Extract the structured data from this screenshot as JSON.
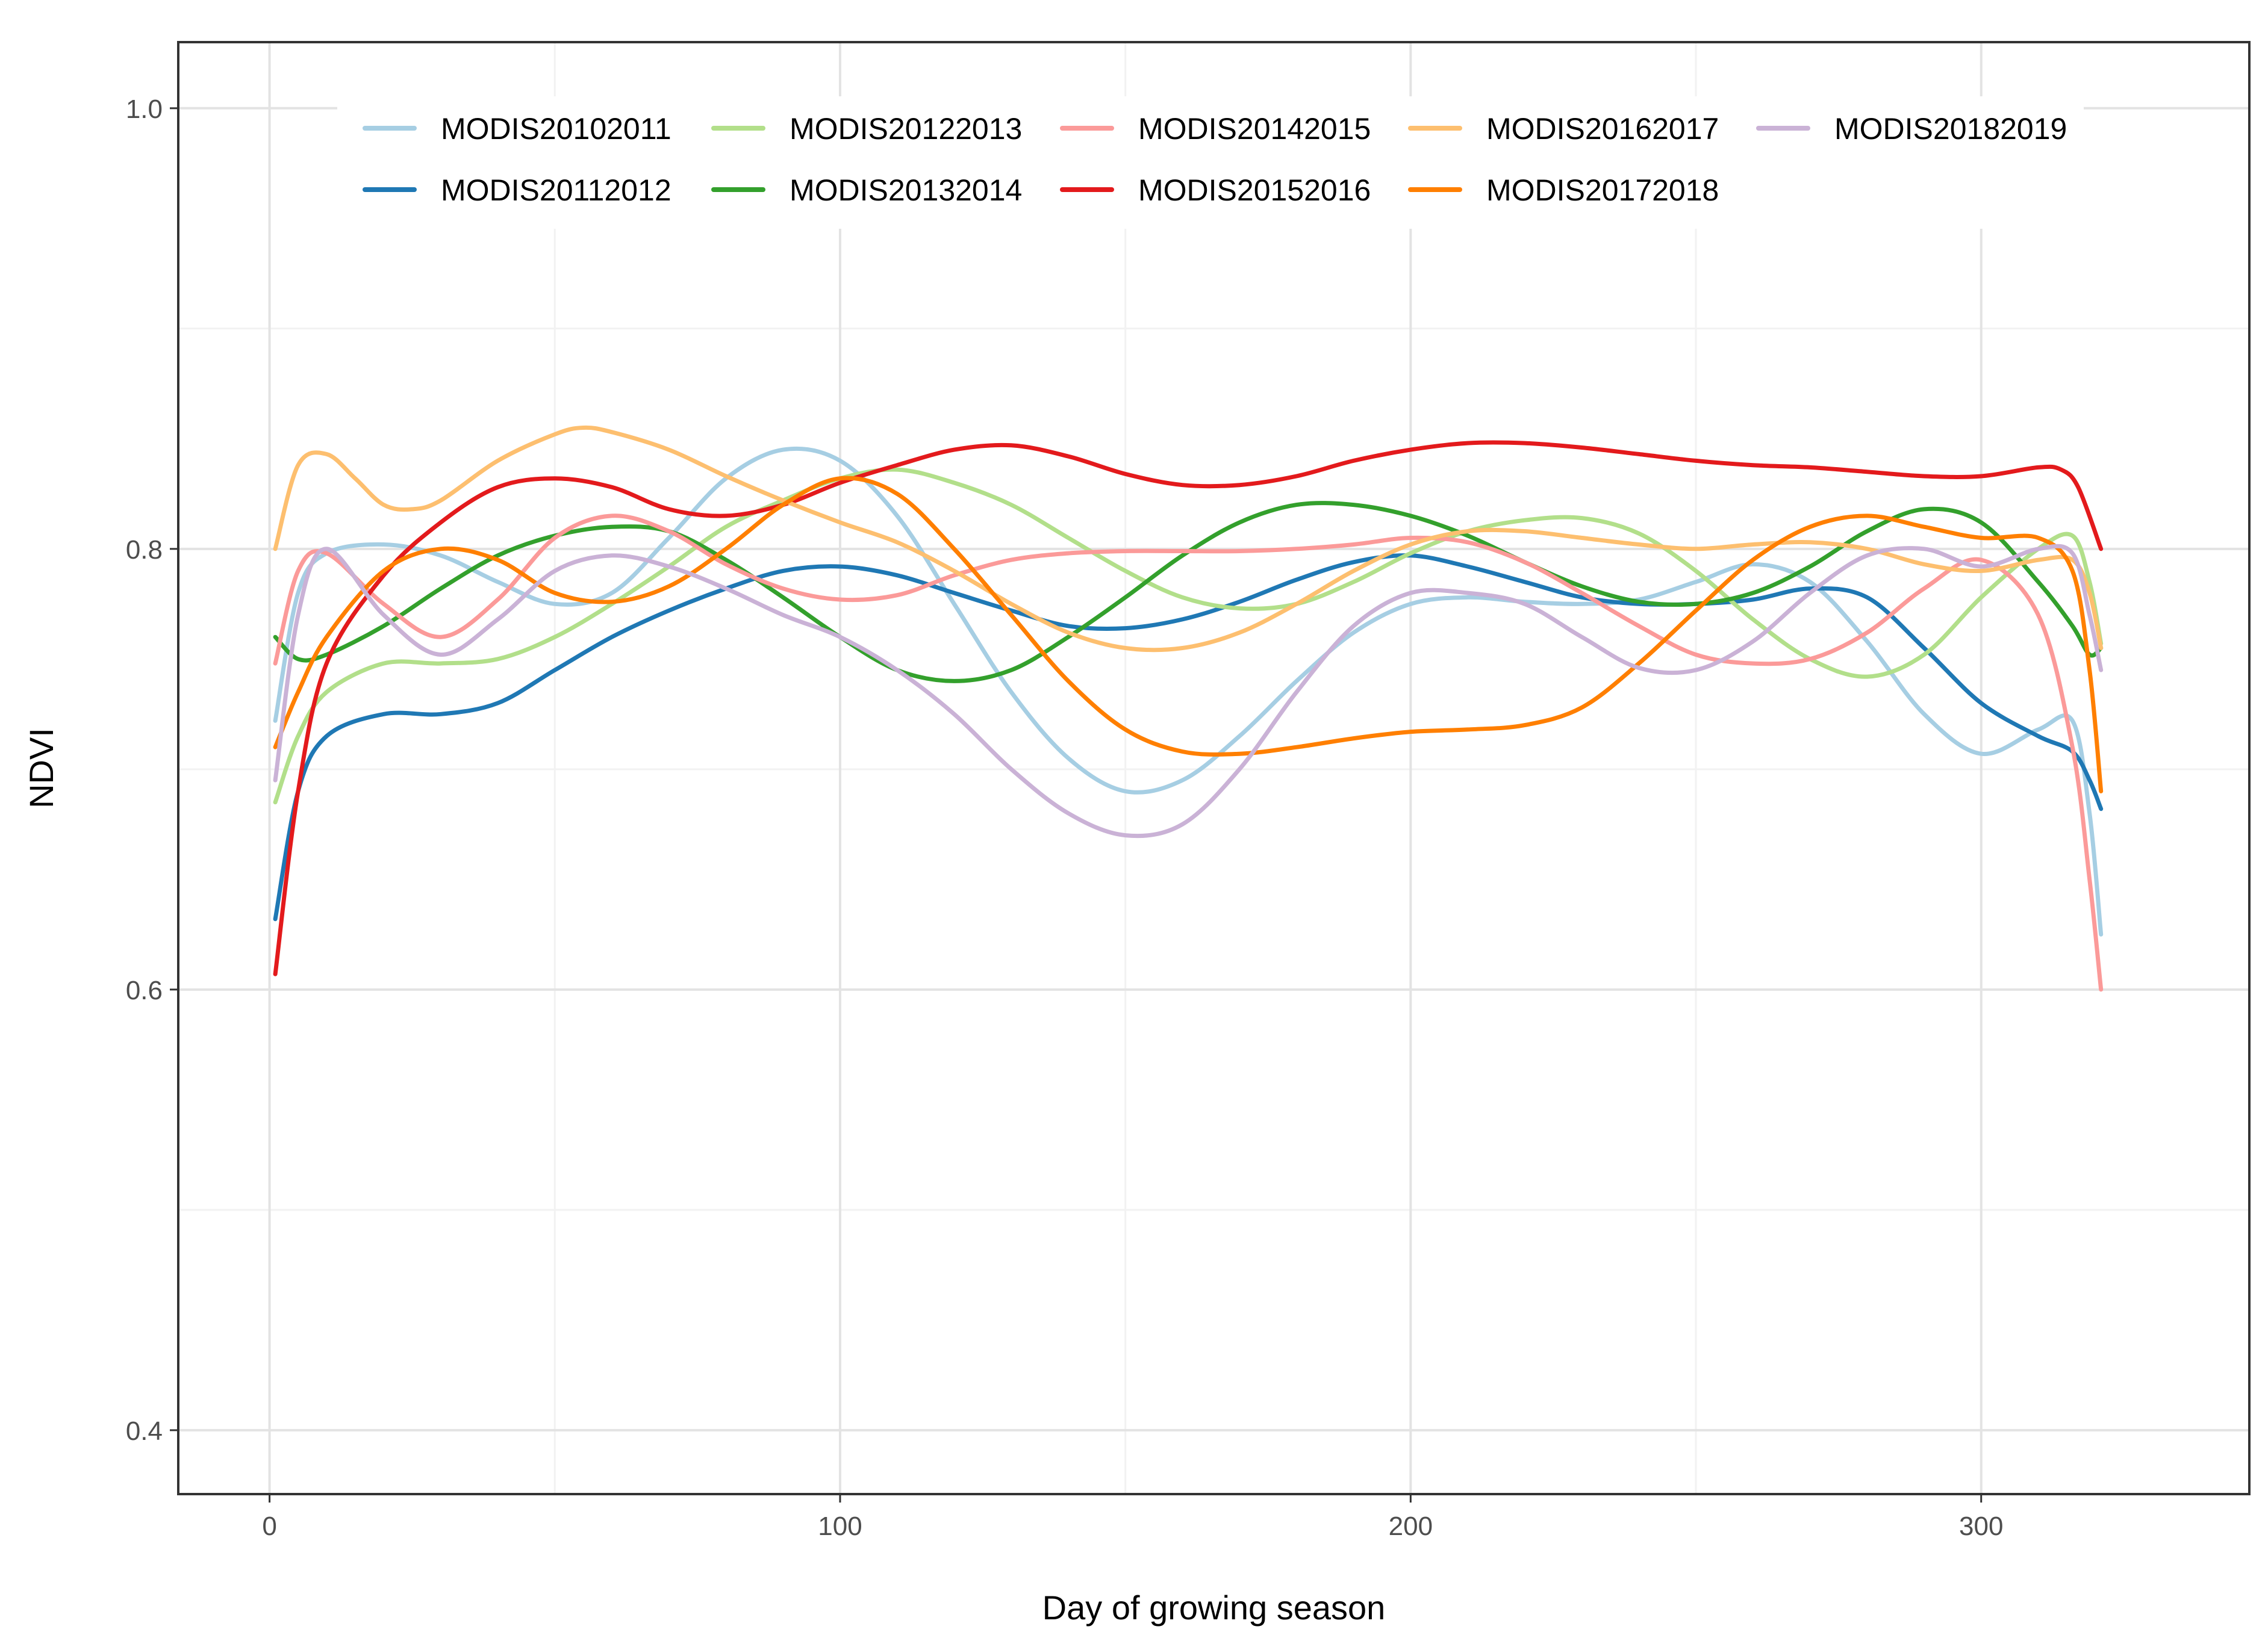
{
  "chart_data": {
    "type": "line",
    "title": "",
    "xlabel": "Day of growing season",
    "ylabel": "NDVI",
    "xlim": [
      -16,
      347
    ],
    "ylim": [
      0.371,
      1.03
    ],
    "x_ticks": [
      0,
      100,
      200,
      300
    ],
    "x_tick_labels": [
      "0",
      "100",
      "200",
      "300"
    ],
    "y_ticks": [
      0.4,
      0.6,
      0.8,
      1.0
    ],
    "y_tick_labels": [
      "0.4",
      "0.6",
      "0.8",
      "1.0"
    ],
    "grid": true,
    "legend_position": "top",
    "series": [
      {
        "name": "MODIS20102011",
        "color": "#a6cee3",
        "x": [
          1,
          5,
          10,
          20,
          30,
          40,
          50,
          60,
          70,
          80,
          90,
          100,
          110,
          120,
          130,
          140,
          150,
          160,
          170,
          180,
          190,
          200,
          210,
          220,
          230,
          240,
          250,
          260,
          270,
          280,
          290,
          300,
          310,
          316,
          319,
          321
        ],
        "y": [
          0.722,
          0.78,
          0.798,
          0.802,
          0.797,
          0.785,
          0.775,
          0.78,
          0.805,
          0.832,
          0.845,
          0.84,
          0.815,
          0.775,
          0.735,
          0.705,
          0.69,
          0.695,
          0.715,
          0.74,
          0.762,
          0.775,
          0.778,
          0.776,
          0.775,
          0.777,
          0.785,
          0.793,
          0.785,
          0.758,
          0.725,
          0.707,
          0.718,
          0.722,
          0.68,
          0.625
        ]
      },
      {
        "name": "MODIS20112012",
        "color": "#1f78b4",
        "x": [
          1,
          5,
          10,
          20,
          30,
          40,
          50,
          60,
          70,
          80,
          90,
          100,
          110,
          120,
          130,
          140,
          150,
          160,
          170,
          180,
          190,
          200,
          210,
          220,
          230,
          240,
          250,
          260,
          270,
          280,
          290,
          300,
          310,
          316,
          319,
          321
        ],
        "y": [
          0.632,
          0.69,
          0.715,
          0.725,
          0.725,
          0.73,
          0.745,
          0.76,
          0.772,
          0.782,
          0.79,
          0.792,
          0.788,
          0.78,
          0.772,
          0.765,
          0.764,
          0.768,
          0.776,
          0.786,
          0.794,
          0.797,
          0.792,
          0.785,
          0.778,
          0.775,
          0.775,
          0.777,
          0.782,
          0.778,
          0.755,
          0.73,
          0.715,
          0.708,
          0.695,
          0.682
        ]
      },
      {
        "name": "MODIS20122013",
        "color": "#b2df8a",
        "x": [
          1,
          5,
          10,
          20,
          30,
          40,
          50,
          60,
          70,
          80,
          90,
          100,
          110,
          120,
          130,
          140,
          150,
          160,
          170,
          180,
          190,
          200,
          210,
          220,
          230,
          240,
          250,
          260,
          270,
          280,
          290,
          300,
          310,
          316,
          319,
          321
        ],
        "y": [
          0.685,
          0.715,
          0.735,
          0.748,
          0.748,
          0.75,
          0.76,
          0.775,
          0.792,
          0.81,
          0.822,
          0.832,
          0.836,
          0.83,
          0.82,
          0.805,
          0.79,
          0.778,
          0.773,
          0.775,
          0.785,
          0.798,
          0.808,
          0.813,
          0.814,
          0.807,
          0.79,
          0.768,
          0.75,
          0.742,
          0.752,
          0.778,
          0.8,
          0.806,
          0.785,
          0.757
        ]
      },
      {
        "name": "MODIS20132014",
        "color": "#33a02c",
        "x": [
          1,
          5,
          10,
          20,
          30,
          40,
          50,
          60,
          70,
          80,
          90,
          100,
          110,
          120,
          130,
          140,
          150,
          160,
          170,
          180,
          190,
          200,
          210,
          220,
          230,
          240,
          250,
          260,
          270,
          280,
          290,
          300,
          310,
          316,
          319,
          321
        ],
        "y": [
          0.76,
          0.75,
          0.752,
          0.765,
          0.782,
          0.797,
          0.806,
          0.81,
          0.808,
          0.795,
          0.778,
          0.76,
          0.745,
          0.74,
          0.745,
          0.76,
          0.778,
          0.797,
          0.812,
          0.82,
          0.82,
          0.815,
          0.806,
          0.794,
          0.783,
          0.776,
          0.775,
          0.78,
          0.792,
          0.808,
          0.818,
          0.812,
          0.785,
          0.765,
          0.752,
          0.755
        ]
      },
      {
        "name": "MODIS20142015",
        "color": "#fb9a99",
        "x": [
          1,
          5,
          10,
          20,
          30,
          40,
          50,
          60,
          70,
          80,
          90,
          100,
          110,
          120,
          130,
          140,
          150,
          160,
          170,
          180,
          190,
          200,
          210,
          220,
          230,
          240,
          250,
          260,
          270,
          280,
          290,
          300,
          310,
          316,
          319,
          321
        ],
        "y": [
          0.748,
          0.79,
          0.798,
          0.775,
          0.76,
          0.777,
          0.805,
          0.815,
          0.808,
          0.793,
          0.782,
          0.777,
          0.779,
          0.788,
          0.795,
          0.798,
          0.799,
          0.799,
          0.799,
          0.8,
          0.802,
          0.805,
          0.803,
          0.794,
          0.78,
          0.765,
          0.752,
          0.748,
          0.75,
          0.762,
          0.782,
          0.795,
          0.77,
          0.71,
          0.65,
          0.6
        ]
      },
      {
        "name": "MODIS20152016",
        "color": "#e31a1c",
        "x": [
          1,
          5,
          10,
          20,
          30,
          40,
          50,
          60,
          70,
          80,
          90,
          100,
          110,
          120,
          130,
          140,
          150,
          160,
          170,
          180,
          190,
          200,
          210,
          220,
          230,
          240,
          250,
          260,
          270,
          280,
          290,
          300,
          310,
          314,
          317,
          321
        ],
        "y": [
          0.607,
          0.69,
          0.748,
          0.788,
          0.812,
          0.828,
          0.832,
          0.828,
          0.818,
          0.815,
          0.82,
          0.83,
          0.838,
          0.845,
          0.847,
          0.842,
          0.834,
          0.829,
          0.829,
          0.833,
          0.84,
          0.845,
          0.848,
          0.848,
          0.846,
          0.843,
          0.84,
          0.838,
          0.837,
          0.835,
          0.833,
          0.833,
          0.837,
          0.836,
          0.828,
          0.8
        ]
      },
      {
        "name": "MODIS20162017",
        "color": "#fdbf6f",
        "x": [
          1,
          5,
          10,
          15,
          20,
          25,
          30,
          40,
          50,
          55,
          60,
          70,
          80,
          90,
          100,
          110,
          120,
          130,
          140,
          150,
          160,
          170,
          180,
          190,
          200,
          210,
          220,
          230,
          240,
          250,
          260,
          270,
          280,
          290,
          300,
          310,
          316,
          319,
          321
        ],
        "y": [
          0.8,
          0.838,
          0.843,
          0.832,
          0.82,
          0.818,
          0.822,
          0.84,
          0.852,
          0.855,
          0.853,
          0.845,
          0.833,
          0.822,
          0.812,
          0.803,
          0.79,
          0.775,
          0.762,
          0.755,
          0.755,
          0.762,
          0.775,
          0.79,
          0.802,
          0.808,
          0.808,
          0.805,
          0.802,
          0.8,
          0.802,
          0.803,
          0.8,
          0.793,
          0.79,
          0.795,
          0.795,
          0.78,
          0.755
        ]
      },
      {
        "name": "MODIS20172018",
        "color": "#ff7f00",
        "x": [
          1,
          5,
          10,
          20,
          30,
          40,
          50,
          60,
          70,
          80,
          90,
          100,
          110,
          120,
          130,
          140,
          150,
          160,
          170,
          180,
          190,
          200,
          210,
          220,
          230,
          240,
          250,
          260,
          270,
          280,
          290,
          300,
          310,
          316,
          319,
          321
        ],
        "y": [
          0.71,
          0.735,
          0.76,
          0.79,
          0.8,
          0.795,
          0.78,
          0.776,
          0.783,
          0.8,
          0.82,
          0.832,
          0.825,
          0.8,
          0.77,
          0.74,
          0.718,
          0.708,
          0.707,
          0.71,
          0.714,
          0.717,
          0.718,
          0.72,
          0.728,
          0.748,
          0.772,
          0.795,
          0.81,
          0.815,
          0.81,
          0.805,
          0.805,
          0.79,
          0.745,
          0.69
        ]
      },
      {
        "name": "MODIS20182019",
        "color": "#cab2d6",
        "x": [
          1,
          5,
          10,
          20,
          30,
          40,
          50,
          60,
          70,
          80,
          90,
          100,
          110,
          120,
          130,
          140,
          150,
          160,
          170,
          180,
          190,
          200,
          210,
          220,
          230,
          240,
          250,
          260,
          270,
          280,
          290,
          300,
          310,
          316,
          319,
          321
        ],
        "y": [
          0.695,
          0.77,
          0.8,
          0.77,
          0.752,
          0.768,
          0.79,
          0.797,
          0.792,
          0.782,
          0.77,
          0.76,
          0.745,
          0.725,
          0.7,
          0.68,
          0.67,
          0.675,
          0.7,
          0.735,
          0.765,
          0.78,
          0.78,
          0.775,
          0.76,
          0.746,
          0.745,
          0.758,
          0.78,
          0.797,
          0.8,
          0.792,
          0.8,
          0.798,
          0.77,
          0.745
        ]
      }
    ]
  }
}
